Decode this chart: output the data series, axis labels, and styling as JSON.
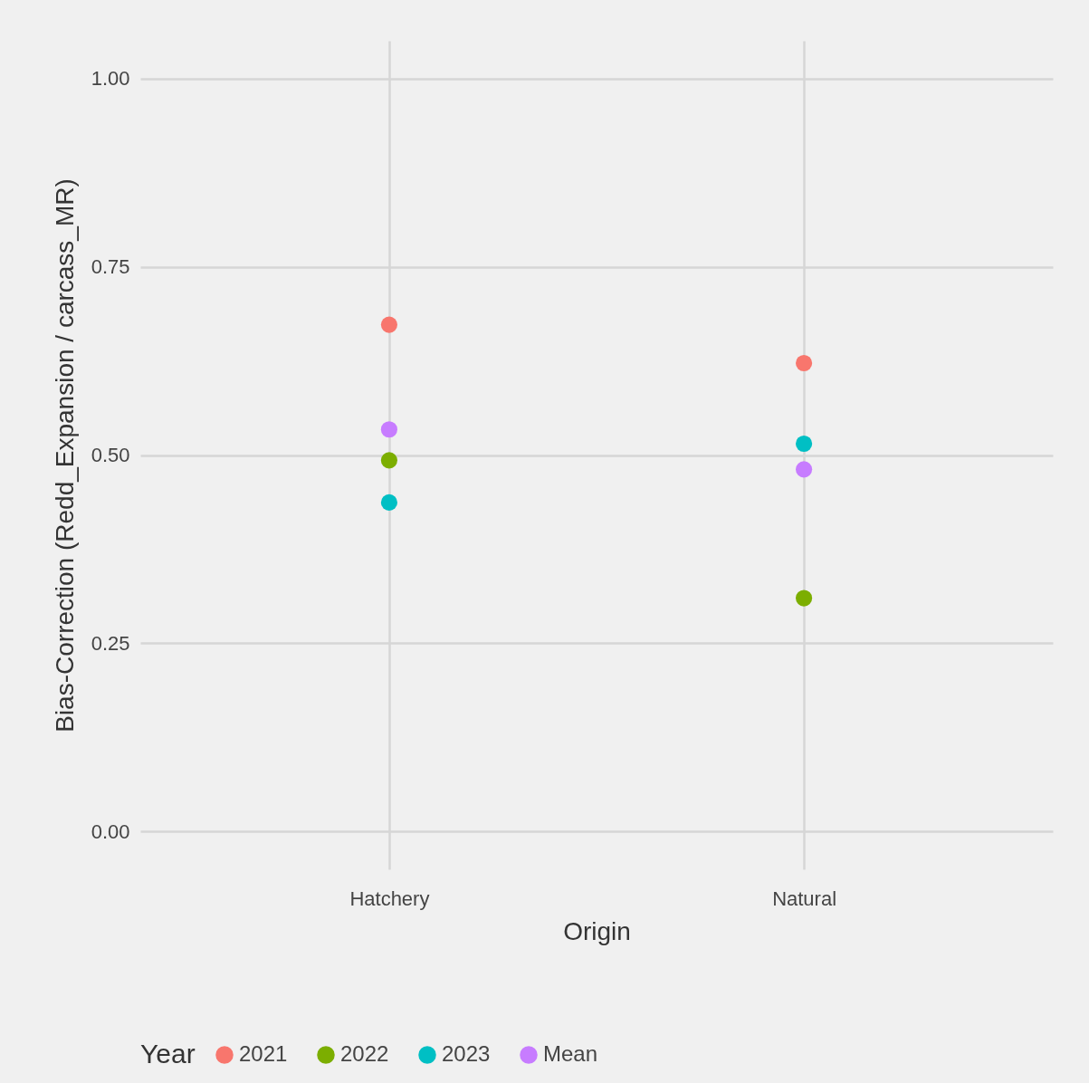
{
  "chart_data": {
    "type": "scatter",
    "xlabel": "Origin",
    "ylabel": "Bias-Correction (Redd_Expansion / carcass_MR)",
    "legend_title": "Year",
    "categories": [
      "Hatchery",
      "Natural"
    ],
    "series": [
      {
        "name": "2021",
        "color": "#f8766d",
        "values": [
          0.673,
          0.622
        ]
      },
      {
        "name": "2022",
        "color": "#7cae00",
        "values": [
          0.493,
          0.31
        ]
      },
      {
        "name": "2023",
        "color": "#00bfc4",
        "values": [
          0.437,
          0.515
        ]
      },
      {
        "name": "Mean",
        "color": "#c77cff",
        "values": [
          0.534,
          0.481
        ]
      }
    ],
    "ylim": [
      -0.05,
      1.05
    ],
    "yticks": [
      {
        "value": 0,
        "label": "0.00"
      },
      {
        "value": 0.25,
        "label": "0.25"
      },
      {
        "value": 0.5,
        "label": "0.50"
      },
      {
        "value": 0.75,
        "label": "0.75"
      },
      {
        "value": 1,
        "label": "1.00"
      }
    ],
    "grid": true,
    "legend": "bottom",
    "marker": "circle"
  }
}
